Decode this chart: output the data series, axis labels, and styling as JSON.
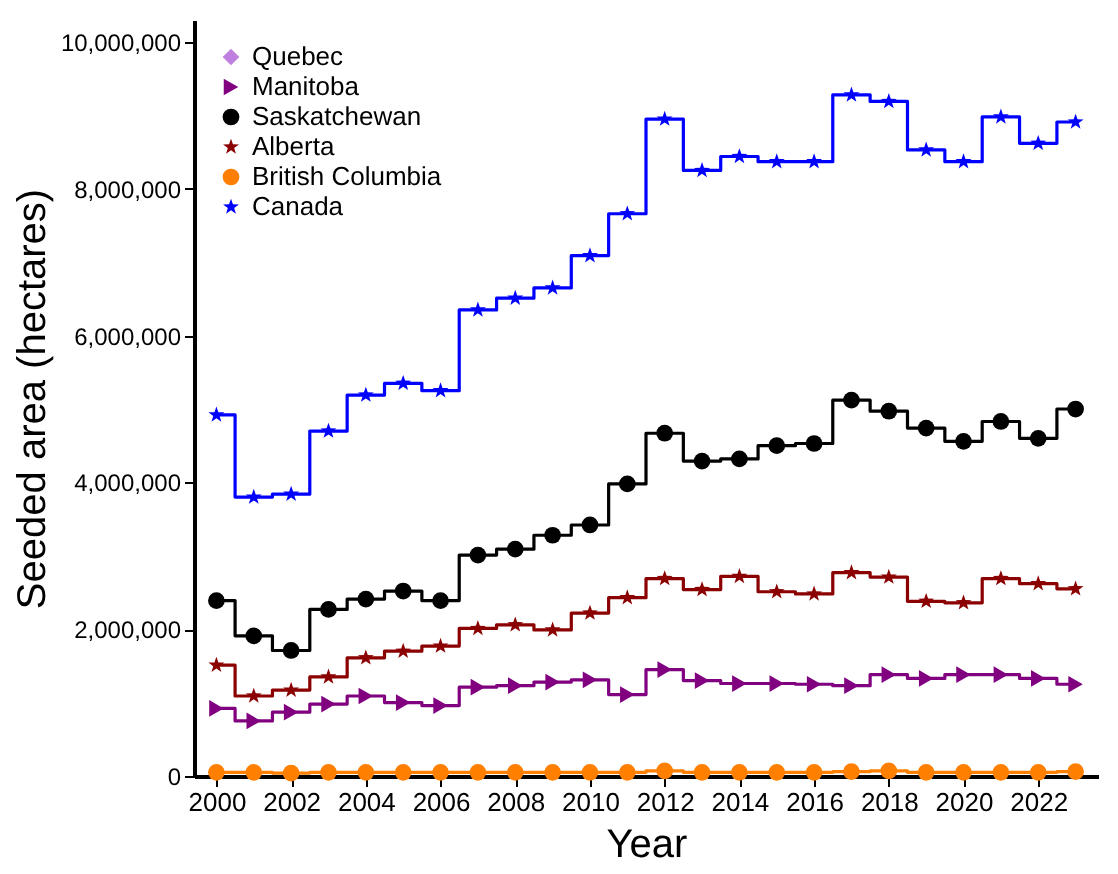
{
  "chart_data": {
    "type": "step",
    "xlabel": "Year",
    "ylabel": "Seeded area (hectares)",
    "x": [
      2000,
      2001,
      2002,
      2003,
      2004,
      2005,
      2006,
      2007,
      2008,
      2009,
      2010,
      2011,
      2012,
      2013,
      2014,
      2015,
      2016,
      2017,
      2018,
      2019,
      2020,
      2021,
      2022,
      2023
    ],
    "series": [
      {
        "name": "Quebec",
        "color": "#c080e0",
        "marker": "diamond",
        "values": [
          null,
          null,
          null,
          null,
          null,
          null,
          null,
          null,
          null,
          null,
          null,
          null,
          null,
          null,
          null,
          null,
          null,
          null,
          null,
          null,
          null,
          null,
          null,
          null
        ]
      },
      {
        "name": "Manitoba",
        "color": "#800080",
        "marker": "triangle",
        "values": [
          920000,
          750000,
          870000,
          980000,
          1090000,
          1000000,
          960000,
          1210000,
          1230000,
          1280000,
          1310000,
          1110000,
          1450000,
          1300000,
          1260000,
          1260000,
          1250000,
          1230000,
          1380000,
          1330000,
          1380000,
          1380000,
          1330000,
          1250000
        ]
      },
      {
        "name": "Saskatchewan",
        "color": "#000000",
        "marker": "circle",
        "values": [
          2390000,
          1910000,
          1710000,
          2270000,
          2410000,
          2520000,
          2390000,
          3010000,
          3090000,
          3280000,
          3420000,
          3980000,
          4670000,
          4290000,
          4320000,
          4500000,
          4530000,
          5120000,
          4970000,
          4740000,
          4560000,
          4830000,
          4600000,
          5000000
        ]
      },
      {
        "name": "Alberta",
        "color": "#8b0000",
        "marker": "star",
        "values": [
          1510000,
          1090000,
          1170000,
          1350000,
          1610000,
          1700000,
          1770000,
          2010000,
          2060000,
          1990000,
          2220000,
          2430000,
          2690000,
          2540000,
          2720000,
          2510000,
          2480000,
          2770000,
          2710000,
          2380000,
          2360000,
          2690000,
          2620000,
          2550000
        ]
      },
      {
        "name": "British Columbia",
        "color": "#ff7f00",
        "marker": "circle",
        "values": [
          50000,
          50000,
          40000,
          50000,
          50000,
          50000,
          50000,
          50000,
          50000,
          50000,
          50000,
          50000,
          70000,
          50000,
          50000,
          50000,
          50000,
          60000,
          70000,
          50000,
          50000,
          50000,
          50000,
          60000
        ]
      },
      {
        "name": "Canada",
        "color": "#0000ff",
        "marker": "star",
        "values": [
          4920000,
          3800000,
          3840000,
          4700000,
          5190000,
          5350000,
          5250000,
          6350000,
          6510000,
          6650000,
          7090000,
          7660000,
          8950000,
          8250000,
          8440000,
          8370000,
          8370000,
          9280000,
          9190000,
          8530000,
          8370000,
          8980000,
          8620000,
          8910000
        ]
      }
    ],
    "xlim": [
      1999.4,
      2023.6
    ],
    "xticks": [
      2000,
      2002,
      2004,
      2006,
      2008,
      2010,
      2012,
      2014,
      2016,
      2018,
      2020,
      2022
    ],
    "ylim": [
      0,
      10300000
    ],
    "yticks": [
      0,
      {
        "value": 2000000,
        "label": "2,000,000"
      },
      {
        "value": 4000000,
        "label": "4,000,000"
      },
      {
        "value": 6000000,
        "label": "6,000,000"
      },
      {
        "value": 8000000,
        "label": "8,000,000"
      },
      {
        "value": 10000000,
        "label": "10,000,000"
      }
    ],
    "grid": false,
    "legend": "top left",
    "line_style": "solid"
  }
}
